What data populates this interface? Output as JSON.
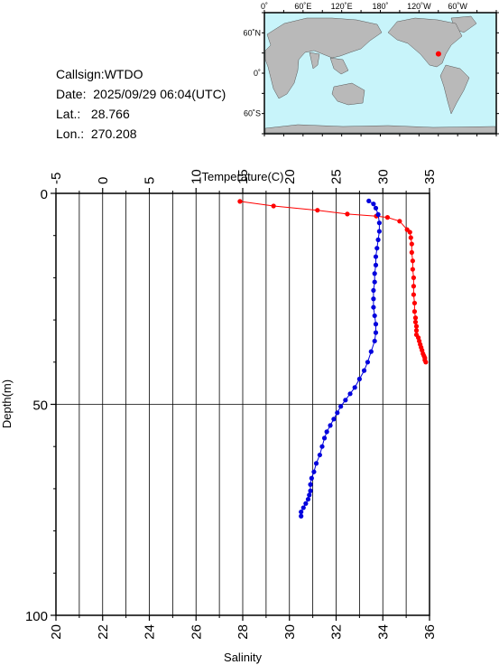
{
  "station": {
    "callsign_label": "Callsign:",
    "callsign": "WTDO",
    "date_label": "Date:",
    "date": "2025/09/29 06:04(UTC)",
    "lat_label": "Lat.:",
    "lat": "28.766",
    "lon_label": "Lon.:",
    "lon": "270.208"
  },
  "map": {
    "lon_labels": [
      "0˚",
      "60˚E",
      "120˚E",
      "180˚",
      "120˚W",
      "60˚W"
    ],
    "lat_labels": [
      "60˚N",
      "0˚",
      "60˚S"
    ],
    "marker_lon": 270.208,
    "marker_lat": 28.766,
    "colors": {
      "ocean": "#c8f4fa",
      "land": "#b9b9b9",
      "marker": "#ff0000"
    }
  },
  "chart_data": {
    "type": "line",
    "colors": {
      "temperature": "#ff0000",
      "salinity": "#0000dd"
    },
    "top_axis": {
      "label": "Temperature(C)",
      "ticks": [
        -5,
        0,
        5,
        10,
        15,
        20,
        25,
        30,
        35
      ],
      "range": [
        -5,
        35
      ]
    },
    "bottom_axis": {
      "label": "Salinity",
      "ticks": [
        20,
        22,
        24,
        26,
        28,
        30,
        32,
        34,
        36
      ],
      "range": [
        20,
        36
      ]
    },
    "left_axis": {
      "label": "Depth(m)",
      "ticks": [
        0,
        50,
        100
      ],
      "range": [
        0,
        100
      ]
    },
    "grid": true,
    "series": [
      {
        "name": "Temperature",
        "axis": "top",
        "x": [
          14.7,
          18.3,
          23.0,
          26.2,
          29.3,
          30.5,
          31.8,
          32.6,
          32.9,
          33.0,
          33.1,
          33.1,
          33.2,
          33.2,
          33.3,
          33.3,
          33.3,
          33.4,
          33.4,
          33.5,
          33.5,
          33.6,
          33.6,
          33.6,
          33.8,
          33.9,
          34.0,
          34.1,
          34.2,
          34.3,
          34.4,
          34.5,
          34.5,
          34.6
        ],
        "y": [
          1.9,
          3.0,
          4.0,
          4.9,
          5.4,
          5.7,
          6.6,
          8.6,
          9.2,
          10.5,
          12.0,
          14.0,
          16.0,
          18.0,
          20.0,
          22.0,
          24.0,
          26.0,
          28.0,
          29.5,
          30.5,
          31.5,
          32.5,
          33.5,
          34.2,
          35.0,
          35.8,
          36.5,
          37.2,
          38.0,
          38.5,
          39.0,
          39.5,
          40.0
        ]
      },
      {
        "name": "Salinity",
        "axis": "bottom",
        "x": [
          33.4,
          33.6,
          33.7,
          33.8,
          33.85,
          33.85,
          33.8,
          33.75,
          33.7,
          33.7,
          33.65,
          33.65,
          33.6,
          33.6,
          33.6,
          33.65,
          33.7,
          33.7,
          33.65,
          33.5,
          33.35,
          33.2,
          33.0,
          32.8,
          32.6,
          32.4,
          32.2,
          32.05,
          31.9,
          31.75,
          31.6,
          31.5,
          31.4,
          31.3,
          31.15,
          31.05,
          30.95,
          30.9,
          30.9,
          30.85,
          30.8,
          30.7,
          30.6,
          30.5,
          30.5
        ],
        "y": [
          1.8,
          2.5,
          3.5,
          5.0,
          7.0,
          9.0,
          11.0,
          13.0,
          15.0,
          17.0,
          19.0,
          21.0,
          23.0,
          25.0,
          27.0,
          29.0,
          31.0,
          33.0,
          35.0,
          37.5,
          40.0,
          42.0,
          44.0,
          46.0,
          47.5,
          49.0,
          50.5,
          52.0,
          53.5,
          55.0,
          56.5,
          58.0,
          60.0,
          62.0,
          64.0,
          66.0,
          67.5,
          69.0,
          70.5,
          71.5,
          72.5,
          73.5,
          74.5,
          75.5,
          76.5
        ]
      }
    ]
  }
}
